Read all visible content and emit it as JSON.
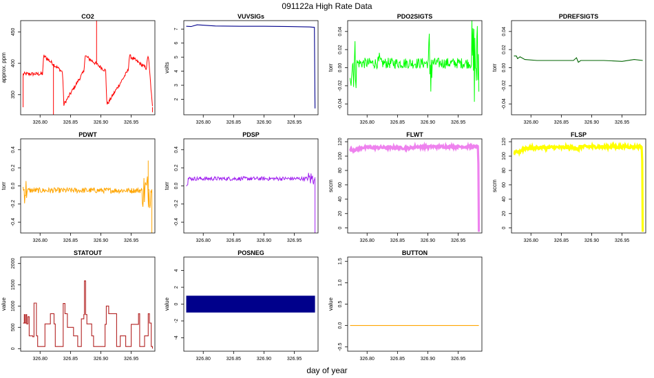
{
  "header": {
    "title": "091122a   High Rate Data",
    "xlabel": "day of year"
  },
  "x_axis": {
    "ticks": [
      326.8,
      326.85,
      326.9,
      326.95
    ],
    "tick_labels": [
      "326.80",
      "326.85",
      "326.90",
      "326.95"
    ],
    "xlim": [
      326.768,
      326.989
    ]
  },
  "chart_data": [
    {
      "type": "line",
      "title": "CO2",
      "ylabel": "approx. ppm",
      "color": "#ff0000",
      "ylim": [
        318,
        468
      ],
      "yticks": [
        350,
        400,
        450
      ],
      "ytick_labels": [
        "350",
        "400",
        "450"
      ],
      "series": [
        {
          "name": "CO2",
          "style": "noisy",
          "baseline": 383,
          "noise": 3,
          "x": [
            326.772,
            326.804,
            326.806,
            326.837,
            326.839,
            326.872,
            326.874,
            326.908,
            326.91,
            326.945,
            326.947,
            326.975,
            326.978,
            326.985
          ],
          "y": [
            383,
            383,
            412,
            386,
            334,
            387,
            412,
            388,
            334,
            389,
            412,
            392,
            415,
            330
          ],
          "spikes": [
            {
              "x": 326.772,
              "y": 330
            },
            {
              "x": 326.822,
              "y": 318
            },
            {
              "x": 326.893,
              "y": 468
            },
            {
              "x": 326.985,
              "y": 322
            }
          ]
        }
      ]
    },
    {
      "type": "line",
      "title": "VUVSIGs",
      "ylabel": "volts",
      "color": "#00008b",
      "ylim": [
        0.9,
        7.6
      ],
      "yticks": [
        2,
        3,
        4,
        5,
        6,
        7
      ],
      "ytick_labels": [
        "2",
        "3",
        "4",
        "5",
        "6",
        "7"
      ],
      "series": [
        {
          "name": "VUVSIGs",
          "style": "smooth",
          "x": [
            326.772,
            326.78,
            326.79,
            326.82,
            326.86,
            326.9,
            326.94,
            326.975,
            326.983,
            326.984
          ],
          "y": [
            7.2,
            7.18,
            7.3,
            7.22,
            7.2,
            7.2,
            7.18,
            7.15,
            7.12,
            1.35
          ]
        }
      ]
    },
    {
      "type": "line",
      "title": "PDO2SIGTS",
      "ylabel": "torr",
      "color": "#00ff00",
      "ylim": [
        -0.052,
        0.052
      ],
      "yticks": [
        -0.04,
        -0.02,
        0.0,
        0.02,
        0.04
      ],
      "ytick_labels": [
        "-0.04",
        "-0.02",
        "0.00",
        "0.02",
        "0.04"
      ],
      "series": [
        {
          "name": "PDO2SIGTS",
          "style": "noisy",
          "baseline": 0.005,
          "noise": 0.006,
          "bursts": [
            {
              "x0": 326.772,
              "x1": 326.782,
              "amp": 0.03
            },
            {
              "x0": 326.818,
              "x1": 326.822,
              "amp": 0.012
            },
            {
              "x0": 326.901,
              "x1": 326.907,
              "amp": 0.044
            },
            {
              "x0": 326.972,
              "x1": 326.984,
              "amp": 0.05
            }
          ],
          "x": [
            326.772,
            326.984
          ],
          "y": [
            0.005,
            0.005
          ]
        }
      ]
    },
    {
      "type": "line",
      "title": "PDREFSIGTS",
      "ylabel": "torr",
      "color": "#006400",
      "ylim": [
        -0.052,
        0.052
      ],
      "yticks": [
        -0.04,
        -0.02,
        0.0,
        0.02,
        0.04
      ],
      "ytick_labels": [
        "-0.04",
        "-0.02",
        "0.00",
        "0.02",
        "0.04"
      ],
      "series": [
        {
          "name": "PDREFSIGTS",
          "style": "smooth",
          "x": [
            326.772,
            326.776,
            326.778,
            326.782,
            326.79,
            326.81,
            326.84,
            326.87,
            326.875,
            326.878,
            326.882,
            326.89,
            326.92,
            326.95,
            326.97,
            326.984
          ],
          "y": [
            0.013,
            0.013,
            0.01,
            0.012,
            0.009,
            0.008,
            0.008,
            0.008,
            0.011,
            0.006,
            0.008,
            0.008,
            0.008,
            0.007,
            0.009,
            0.008
          ]
        }
      ]
    },
    {
      "type": "line",
      "title": "PDWT",
      "ylabel": "torr",
      "color": "#ffa500",
      "ylim": [
        -0.52,
        0.52
      ],
      "yticks": [
        -0.4,
        -0.2,
        0.0,
        0.2,
        0.4
      ],
      "ytick_labels": [
        "-0.4",
        "-0.2",
        "0.0",
        "0.2",
        "0.4"
      ],
      "series": [
        {
          "name": "PDWT",
          "style": "noisy",
          "baseline": -0.05,
          "noise": 0.03,
          "bursts": [
            {
              "x0": 326.772,
              "x1": 326.778,
              "amp": 0.15
            },
            {
              "x0": 326.968,
              "x1": 326.982,
              "amp": 0.2
            }
          ],
          "spikes": [
            {
              "x": 326.978,
              "y": 0.28
            },
            {
              "x": 326.984,
              "y": -0.52
            }
          ],
          "x": [
            326.772,
            326.984
          ],
          "y": [
            -0.05,
            -0.05
          ]
        }
      ]
    },
    {
      "type": "line",
      "title": "PDSP",
      "ylabel": "torr",
      "color": "#a020f0",
      "ylim": [
        -0.52,
        0.52
      ],
      "yticks": [
        -0.4,
        -0.2,
        0.0,
        0.2,
        0.4
      ],
      "ytick_labels": [
        "-0.4",
        "-0.2",
        "0.0",
        "0.2",
        "0.4"
      ],
      "series": [
        {
          "name": "PDSP",
          "style": "noisy",
          "baseline": 0.08,
          "noise": 0.022,
          "bursts": [
            {
              "x0": 326.772,
              "x1": 326.775,
              "amp": 0.08
            },
            {
              "x0": 326.972,
              "x1": 326.982,
              "amp": 0.08
            }
          ],
          "spikes": [
            {
              "x": 326.984,
              "y": -0.52
            }
          ],
          "x": [
            326.772,
            326.984
          ],
          "y": [
            0.08,
            0.08
          ]
        }
      ]
    },
    {
      "type": "line",
      "title": "FLWT",
      "ylabel": "sccm",
      "color": "#ee82ee",
      "ylim": [
        -7,
        124
      ],
      "yticks": [
        0,
        20,
        40,
        60,
        80,
        100,
        120
      ],
      "ytick_labels": [
        "0",
        "20",
        "40",
        "60",
        "80",
        "100",
        "120"
      ],
      "series": [
        {
          "name": "FLWT",
          "style": "noisy",
          "baseline": 110,
          "noise": 1.8,
          "thick": true,
          "x": [
            326.772,
            326.782,
            326.792,
            326.83,
            326.87,
            326.88,
            326.9,
            326.95,
            326.983,
            326.984
          ],
          "y": [
            108,
            109,
            112,
            112,
            111,
            113,
            113,
            113,
            113,
            -7
          ]
        }
      ]
    },
    {
      "type": "line",
      "title": "FLSP",
      "ylabel": "sccm",
      "color": "#ffff00",
      "ylim": [
        -7,
        124
      ],
      "yticks": [
        0,
        20,
        40,
        60,
        80,
        100,
        120
      ],
      "ytick_labels": [
        "0",
        "20",
        "40",
        "60",
        "80",
        "100",
        "120"
      ],
      "series": [
        {
          "name": "FLSP",
          "style": "noisy",
          "baseline": 110,
          "noise": 2.2,
          "thick": true,
          "x": [
            326.772,
            326.78,
            326.79,
            326.82,
            326.874,
            326.877,
            326.88,
            326.9,
            326.95,
            326.983,
            326.984
          ],
          "y": [
            104,
            106,
            111,
            112,
            112,
            107,
            113,
            113,
            113,
            113,
            -5
          ]
        }
      ]
    },
    {
      "type": "line",
      "title": "STATOUT",
      "ylabel": "value",
      "color": "#b22222",
      "ylim": [
        -60,
        2150
      ],
      "yticks": [
        0,
        500,
        1000,
        1500,
        2000
      ],
      "ytick_labels": [
        "0",
        "500",
        "1000",
        "1500",
        "2000"
      ],
      "series": [
        {
          "name": "STATOUT",
          "style": "step",
          "x": [
            326.772,
            326.774,
            326.775,
            326.777,
            326.778,
            326.78,
            326.782,
            326.788,
            326.79,
            326.794,
            326.796,
            326.804,
            326.808,
            326.815,
            326.817,
            326.823,
            326.825,
            326.836,
            326.838,
            326.841,
            326.845,
            326.853,
            326.855,
            326.86,
            326.862,
            326.866,
            326.868,
            326.872,
            326.873,
            326.875,
            326.877,
            326.883,
            326.885,
            326.888,
            326.891,
            326.905,
            326.907,
            326.909,
            326.913,
            326.924,
            326.926,
            326.93,
            326.932,
            326.939,
            326.941,
            326.946,
            326.95,
            326.96,
            326.962,
            326.964,
            326.966,
            326.97,
            326.972,
            326.976,
            326.978,
            326.98,
            326.983,
            326.985
          ],
          "y": [
            600,
            800,
            600,
            800,
            580,
            750,
            300,
            280,
            1070,
            300,
            50,
            50,
            580,
            580,
            820,
            580,
            50,
            50,
            1060,
            820,
            500,
            500,
            300,
            300,
            50,
            50,
            700,
            800,
            1590,
            800,
            580,
            580,
            300,
            50,
            50,
            50,
            570,
            1000,
            820,
            820,
            50,
            50,
            300,
            300,
            50,
            50,
            570,
            570,
            820,
            50,
            50,
            50,
            300,
            300,
            820,
            600,
            50,
            0
          ]
        }
      ]
    },
    {
      "type": "bar",
      "title": "POSNEG",
      "ylabel": "value",
      "color": "#00008b",
      "ylim": [
        -5.6,
        5.6
      ],
      "yticks": [
        -4,
        -2,
        0,
        2,
        4
      ],
      "ytick_labels": [
        "-4",
        "-2",
        "0",
        "2",
        "4"
      ],
      "series": [
        {
          "name": "POSNEG",
          "style": "band",
          "x": [
            326.772,
            326.984
          ],
          "y": [
            -1,
            1
          ]
        }
      ]
    },
    {
      "type": "line",
      "title": "BUTTON",
      "ylabel": "value",
      "color": "#ffa500",
      "ylim": [
        -0.6,
        1.6
      ],
      "yticks": [
        -0.5,
        0.0,
        0.5,
        1.0,
        1.5
      ],
      "ytick_labels": [
        "-0.5",
        "0.0",
        "0.5",
        "1.0",
        "1.5"
      ],
      "series": [
        {
          "name": "BUTTON",
          "style": "smooth",
          "x": [
            326.772,
            326.984
          ],
          "y": [
            0,
            0
          ]
        }
      ]
    }
  ]
}
